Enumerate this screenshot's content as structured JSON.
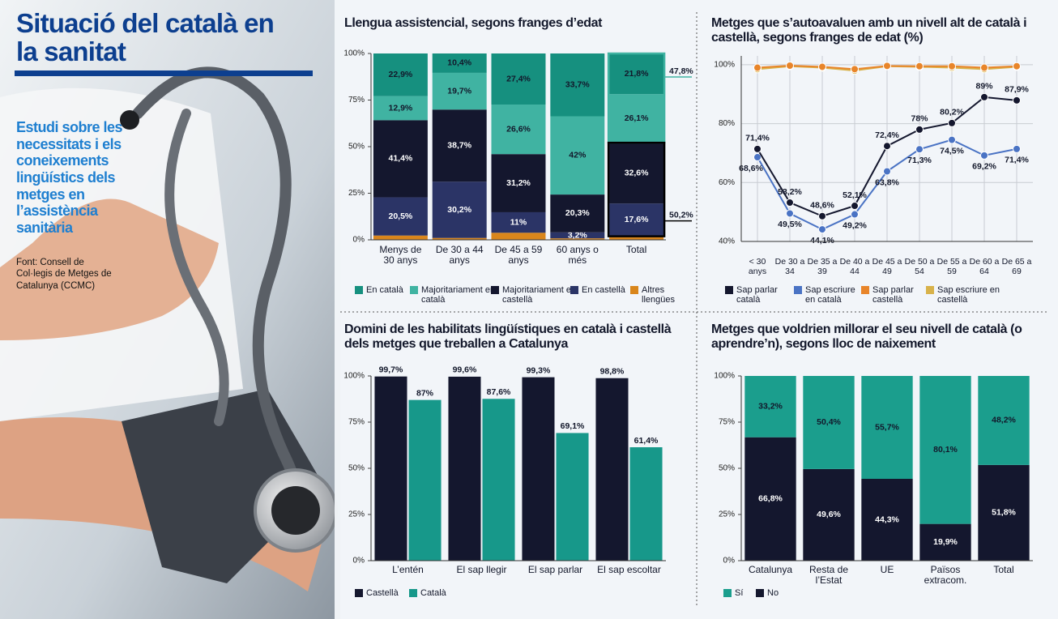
{
  "header": {
    "title": "Situació del català en la sanitat",
    "subtitle": "Estudi sobre les necessitats i els coneixements lingüístics dels metges en l’assistència sanitària",
    "source": "Font: Consell de Col·legis de Metges de Catalunya (CCMC)"
  },
  "chart_data": [
    {
      "type": "stacked_bar",
      "title": "Llengua assistencial, segons franges d’edat",
      "categories": [
        "Menys de 30 anys",
        "De 30 a 44 anys",
        "De 45 a 59 anys",
        "60 anys o més",
        "Total"
      ],
      "series": [
        {
          "name": "En català",
          "color": "#16907f",
          "values": [
            22.9,
            10.4,
            27.4,
            33.7,
            21.8
          ],
          "value_labels": [
            "22,9%",
            "10,4%",
            "27,4%",
            "33,7%",
            "21,8%"
          ]
        },
        {
          "name": "Majoritariament en català",
          "color": "#40b3a2",
          "values": [
            12.9,
            19.7,
            26.6,
            42,
            26.1
          ],
          "value_labels": [
            "12,9%",
            "19,7%",
            "26,6%",
            "42%",
            "26,1%"
          ]
        },
        {
          "name": "Majoritariament en castellà",
          "color": "#14172e",
          "values": [
            41.4,
            38.7,
            31.2,
            20.3,
            32.6
          ],
          "value_labels": [
            "41,4%",
            "38,7%",
            "31,2%",
            "20,3%",
            "32,6%"
          ]
        },
        {
          "name": "En castellà",
          "color": "#2b3466",
          "values": [
            20.5,
            30.2,
            11,
            3.2,
            17.6
          ],
          "value_labels": [
            "20,5%",
            "30,2%",
            "11%",
            "3,2%",
            "17,6%"
          ]
        },
        {
          "name": "Altres llengües",
          "color": "#d9861c",
          "values": [
            2.3,
            1,
            3.8,
            0.8,
            1.9
          ],
          "value_labels": [
            null,
            null,
            null,
            null,
            null
          ]
        }
      ],
      "ylim": [
        0,
        100
      ],
      "yticks": [
        {
          "value": 0,
          "label": "0%"
        },
        {
          "value": 25,
          "label": "25%"
        },
        {
          "value": 50,
          "label": "50%"
        },
        {
          "value": 75,
          "label": "75%"
        },
        {
          "value": 100,
          "label": "100%"
        }
      ],
      "annotations": [
        {
          "value": 47.8,
          "label": "47,8%"
        },
        {
          "value": 50.2,
          "label": "50,2%"
        }
      ],
      "grid": false
    },
    {
      "type": "line",
      "title": "Metges que s’autoavaluen amb un nivell alt de català i castellà, segons franges de edat (%)",
      "categories": [
        "< 30 anys",
        "De 30 a 34",
        "De 35 a 39",
        "De 40 a 44",
        "De 45 a 49",
        "De 50 a 54",
        "De 55 a 59",
        "De 60 a 64",
        "De 65 a 69"
      ],
      "series": [
        {
          "name": "Sap parlar català",
          "color": "#14172e",
          "values": [
            71.4,
            53.2,
            48.6,
            52.1,
            72.4,
            78,
            80.2,
            89,
            87.9
          ],
          "value_labels": [
            "71,4%",
            "53,2%",
            "48,6%",
            "52,1%",
            "72,4%",
            "78%",
            "80,2%",
            "89%",
            "87,9%"
          ]
        },
        {
          "name": "Sap escriure en català",
          "color": "#4a73c4",
          "values": [
            68.6,
            49.5,
            44.1,
            49.2,
            63.8,
            71.3,
            74.5,
            69.2,
            71.4
          ],
          "value_labels": [
            "68,6%",
            "49,5%",
            "44,1%",
            "49,2%",
            "63,8%",
            "71,3%",
            "74,5%",
            "69,2%",
            "71,4%"
          ]
        },
        {
          "name": "Sap parlar castellà",
          "color": "#e8852a",
          "values": [
            99,
            99.7,
            99.3,
            98.5,
            99.6,
            99.5,
            99.5,
            99,
            99.5
          ]
        },
        {
          "name": "Sap escriure en castellà",
          "color": "#d8b24a",
          "values": [
            98.5,
            99.5,
            99,
            98,
            99.5,
            99.3,
            99,
            98.5,
            99.3
          ]
        }
      ],
      "ylim": [
        40,
        103
      ],
      "yticks": [
        {
          "value": 40,
          "label": "40%"
        },
        {
          "value": 60,
          "label": "60%"
        },
        {
          "value": 80,
          "label": "80%"
        },
        {
          "value": 100,
          "label": "100%"
        }
      ],
      "grid": true
    },
    {
      "type": "grouped_bar",
      "title": "Domini de les habilitats lingüístiques en català i castellà dels metges que treballen a Catalunya",
      "categories": [
        "L’entén",
        "El sap llegir",
        "El sap parlar",
        "El sap escoltar"
      ],
      "series": [
        {
          "name": "Castellà",
          "color": "#14172e",
          "values": [
            99.7,
            99.6,
            99.3,
            98.8
          ],
          "value_labels": [
            "99,7%",
            "99,6%",
            "99,3%",
            "98,8%"
          ]
        },
        {
          "name": "Català",
          "color": "#17988a",
          "values": [
            87,
            87.6,
            69.1,
            61.4
          ],
          "value_labels": [
            "87%",
            "87,6%",
            "69,1%",
            "61,4%"
          ]
        }
      ],
      "ylim": [
        0,
        100
      ],
      "yticks": [
        {
          "value": 0,
          "label": "0%"
        },
        {
          "value": 25,
          "label": "25%"
        },
        {
          "value": 50,
          "label": "50%"
        },
        {
          "value": 75,
          "label": "75%"
        },
        {
          "value": 100,
          "label": "100%"
        }
      ],
      "grid": false
    },
    {
      "type": "stacked_bar",
      "title": "Metges que voldrien millorar el seu nivell de català (o aprendre’n), segons lloc de naixement",
      "categories": [
        "Catalunya",
        "Resta de l’Estat",
        "UE",
        "Països extracom.",
        "Total"
      ],
      "series": [
        {
          "name": "Sí",
          "color": "#1b9e8d",
          "values": [
            33.2,
            50.4,
            55.7,
            80.1,
            48.2
          ],
          "value_labels": [
            "33,2%",
            "50,4%",
            "55,7%",
            "80,1%",
            "48,2%"
          ]
        },
        {
          "name": "No",
          "color": "#14172e",
          "values": [
            66.8,
            49.6,
            44.3,
            19.9,
            51.8
          ],
          "value_labels": [
            "66,8%",
            "49,6%",
            "44,3%",
            "19,9%",
            "51,8%"
          ]
        }
      ],
      "ylim": [
        0,
        100
      ],
      "yticks": [
        {
          "value": 0,
          "label": "0%"
        },
        {
          "value": 25,
          "label": "25%"
        },
        {
          "value": 50,
          "label": "50%"
        },
        {
          "value": 75,
          "label": "75%"
        },
        {
          "value": 100,
          "label": "100%"
        }
      ],
      "grid": false
    }
  ]
}
